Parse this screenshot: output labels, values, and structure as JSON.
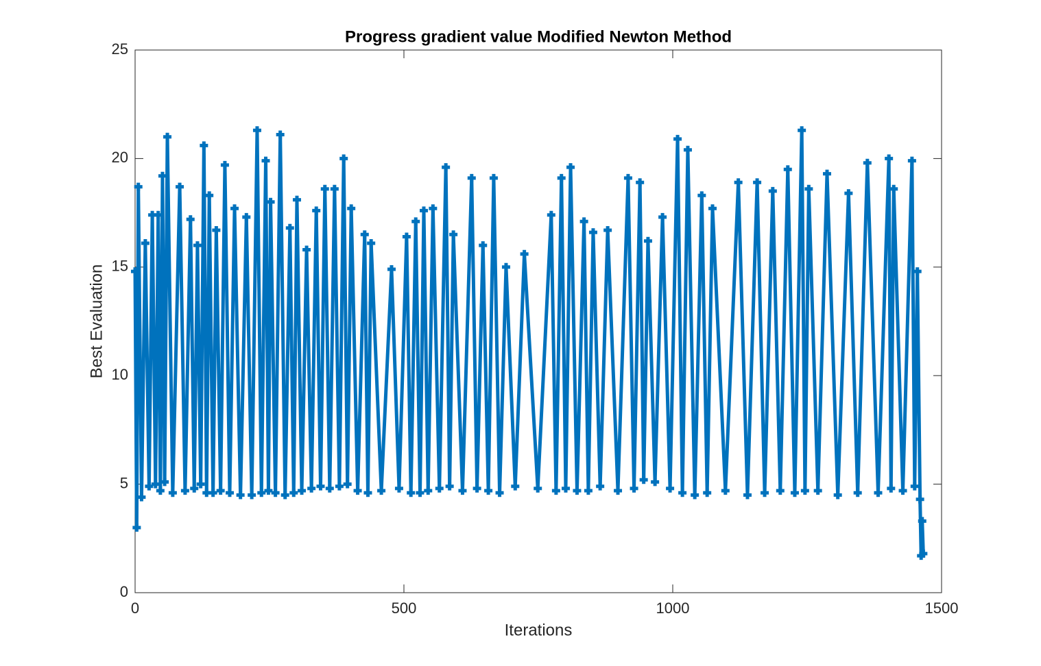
{
  "chart_data": {
    "type": "line",
    "title": "Progress gradient value Modified Newton Method",
    "x_label": "Iterations",
    "y_label": "Best Evaluation",
    "xlim": [
      0,
      1500
    ],
    "xticks": [
      0,
      500,
      1000,
      1500
    ],
    "ylim": [
      0,
      25
    ],
    "yticks": [
      0,
      5,
      10,
      15,
      20,
      25
    ],
    "grid": false,
    "series": [
      {
        "color": "#0072bd",
        "x": [
          0,
          3,
          6,
          12,
          19,
          26,
          32,
          38,
          43,
          47,
          51,
          55,
          60,
          70,
          83,
          93,
          103,
          110,
          116,
          122,
          128,
          133,
          138,
          145,
          151,
          159,
          167,
          176,
          185,
          196,
          207,
          217,
          227,
          235,
          243,
          248,
          252,
          261,
          270,
          279,
          288,
          295,
          301,
          310,
          319,
          328,
          337,
          345,
          353,
          362,
          371,
          380,
          388,
          395,
          402,
          414,
          427,
          433,
          439,
          458,
          477,
          491,
          505,
          513,
          522,
          530,
          537,
          545,
          554,
          566,
          578,
          585,
          592,
          609,
          626,
          636,
          647,
          657,
          667,
          678,
          690,
          707,
          724,
          749,
          774,
          783,
          793,
          801,
          810,
          822,
          835,
          843,
          852,
          865,
          879,
          898,
          917,
          928,
          939,
          946,
          954,
          967,
          981,
          995,
          1009,
          1018,
          1028,
          1041,
          1054,
          1064,
          1074,
          1098,
          1122,
          1139,
          1157,
          1171,
          1186,
          1200,
          1214,
          1227,
          1240,
          1246,
          1253,
          1270,
          1287,
          1307,
          1327,
          1344,
          1362,
          1382,
          1402,
          1406,
          1411,
          1428,
          1445,
          1450,
          1455,
          1460,
          1462,
          1464,
          1466
        ],
        "values": [
          14.8,
          3.0,
          18.7,
          4.4,
          16.1,
          4.9,
          17.4,
          5.0,
          17.4,
          4.7,
          19.2,
          5.1,
          21.0,
          4.6,
          18.7,
          4.7,
          17.2,
          4.8,
          16.0,
          5.0,
          20.6,
          4.6,
          18.3,
          4.6,
          16.7,
          4.7,
          19.7,
          4.6,
          17.7,
          4.5,
          17.3,
          4.5,
          21.3,
          4.6,
          19.9,
          4.7,
          18.0,
          4.6,
          21.1,
          4.5,
          16.8,
          4.6,
          18.1,
          4.7,
          15.8,
          4.8,
          17.6,
          4.9,
          18.6,
          4.8,
          18.6,
          4.9,
          20.0,
          5.0,
          17.7,
          4.7,
          16.5,
          4.6,
          16.1,
          4.7,
          14.9,
          4.8,
          16.4,
          4.6,
          17.1,
          4.6,
          17.6,
          4.7,
          17.7,
          4.8,
          19.6,
          4.9,
          16.5,
          4.7,
          19.1,
          4.8,
          16.0,
          4.7,
          19.1,
          4.6,
          15.0,
          4.9,
          15.6,
          4.8,
          17.4,
          4.7,
          19.1,
          4.8,
          19.6,
          4.7,
          17.1,
          4.7,
          16.6,
          4.9,
          16.7,
          4.7,
          19.1,
          4.8,
          18.9,
          5.2,
          16.2,
          5.1,
          17.3,
          4.8,
          20.9,
          4.6,
          20.4,
          4.5,
          18.3,
          4.6,
          17.7,
          4.7,
          18.9,
          4.5,
          18.9,
          4.6,
          18.5,
          4.7,
          19.5,
          4.6,
          21.3,
          4.7,
          18.6,
          4.7,
          19.3,
          4.5,
          18.4,
          4.6,
          19.8,
          4.6,
          20.0,
          4.8,
          18.6,
          4.7,
          19.9,
          4.9,
          14.8,
          4.3,
          1.7,
          3.3,
          1.8
        ]
      }
    ]
  }
}
